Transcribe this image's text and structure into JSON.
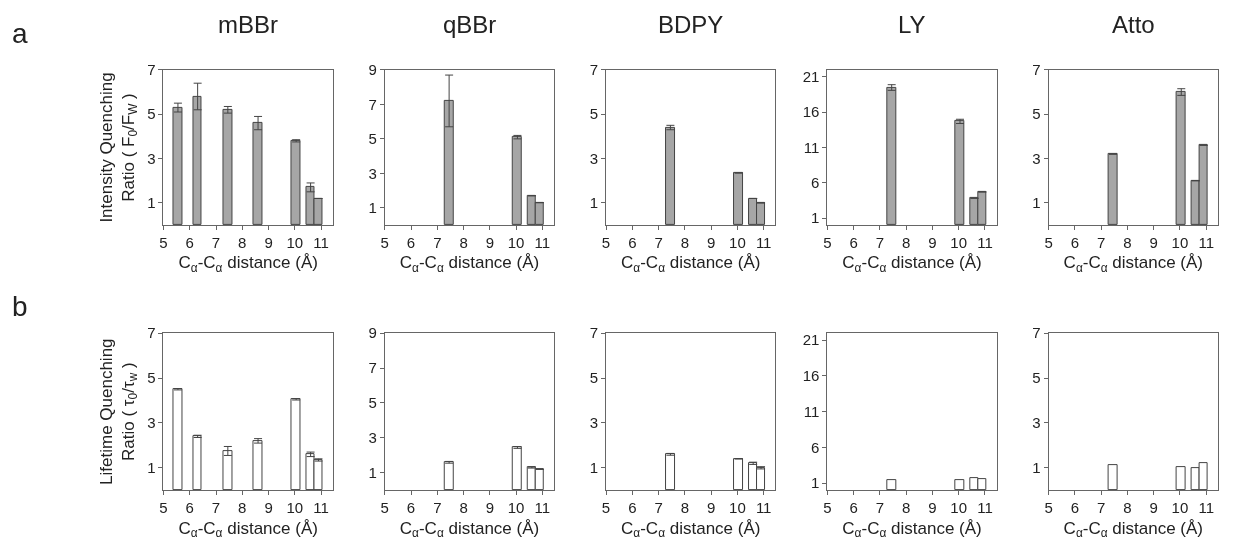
{
  "chart_data": [
    {
      "type": "bar",
      "title": "mBBr",
      "xlabel": "C$_{α}$-C$_{α}$ distance (Å)",
      "ylabel": "Intensity Quenching\nRatio ( F$_{0}$/F$_{W}$ )",
      "annotations": [
        "a"
      ],
      "x": [
        5.55,
        6.3,
        7.45,
        8.6,
        10.05,
        10.6,
        10.9
      ],
      "values": [
        5.3,
        5.8,
        5.2,
        4.6,
        3.8,
        1.7,
        1.2
      ],
      "errors": [
        0.2,
        0.6,
        0.15,
        0.3,
        0.05,
        0.2,
        null
      ],
      "color": "#a6a6a6",
      "xlim": [
        5,
        11.45
      ],
      "xticks": [
        5,
        6,
        7,
        8,
        9,
        10,
        11
      ],
      "ylim": [
        0,
        7
      ],
      "yticks": [
        1,
        3,
        5,
        7
      ]
    },
    {
      "type": "bar",
      "title": "qBBr",
      "xlabel": "C$_{α}$-C$_{α}$ distance (Å)",
      "x": [
        7.45,
        10.05,
        10.6,
        10.9
      ],
      "values": [
        7.2,
        5.1,
        1.7,
        1.3
      ],
      "errors": [
        1.5,
        0.1,
        null,
        null
      ],
      "color": "#a6a6a6",
      "xlim": [
        5,
        11.45
      ],
      "xticks": [
        5,
        6,
        7,
        8,
        9,
        10,
        11
      ],
      "ylim": [
        0,
        9
      ],
      "yticks": [
        1,
        3,
        5,
        7,
        9
      ]
    },
    {
      "type": "bar",
      "title": "BDPY",
      "xlabel": "C$_{α}$-C$_{α}$ distance (Å)",
      "x": [
        7.45,
        10.05,
        10.6,
        10.9
      ],
      "values": [
        4.4,
        2.35,
        1.2,
        1.0
      ],
      "errors": [
        0.1,
        null,
        null,
        null
      ],
      "color": "#a6a6a6",
      "xlim": [
        5,
        11.45
      ],
      "xticks": [
        5,
        6,
        7,
        8,
        9,
        10,
        11
      ],
      "ylim": [
        0,
        7
      ],
      "yticks": [
        1,
        3,
        5,
        7
      ]
    },
    {
      "type": "bar",
      "title": "LY",
      "xlabel": "C$_{α}$-C$_{α}$ distance (Å)",
      "x": [
        7.45,
        10.05,
        10.6,
        10.9
      ],
      "values": [
        19.5,
        14.7,
        3.8,
        4.7
      ],
      "errors": [
        0.4,
        0.3,
        null,
        null
      ],
      "color": "#a6a6a6",
      "xlim": [
        5,
        11.45
      ],
      "xticks": [
        5,
        6,
        7,
        8,
        9,
        10,
        11
      ],
      "ylim": [
        0,
        22
      ],
      "yticks": [
        1,
        6,
        11,
        16,
        21
      ]
    },
    {
      "type": "bar",
      "title": "Atto",
      "xlabel": "C$_{α}$-C$_{α}$ distance (Å)",
      "x": [
        7.45,
        10.05,
        10.6,
        10.9
      ],
      "values": [
        3.2,
        6.0,
        2.0,
        3.6
      ],
      "errors": [
        null,
        0.15,
        null,
        null
      ],
      "color": "#a6a6a6",
      "xlim": [
        5,
        11.45
      ],
      "xticks": [
        5,
        6,
        7,
        8,
        9,
        10,
        11
      ],
      "ylim": [
        0,
        7
      ],
      "yticks": [
        1,
        3,
        5,
        7
      ]
    },
    {
      "type": "bar",
      "xlabel": "C$_{α}$-C$_{α}$ distance (Å)",
      "ylabel": "Lifetime Quenching\nRatio ( τ$_{0}$/τ$_{w}$ )",
      "annotations": [
        "b"
      ],
      "x": [
        5.55,
        6.3,
        7.45,
        8.6,
        10.05,
        10.6,
        10.9
      ],
      "values": [
        4.5,
        2.4,
        1.75,
        2.2,
        4.05,
        1.6,
        1.35
      ],
      "errors": [
        0.03,
        0.05,
        0.2,
        0.1,
        0.03,
        0.1,
        0.05
      ],
      "color": "#ffffff",
      "xlim": [
        5,
        11.45
      ],
      "xticks": [
        5,
        6,
        7,
        8,
        9,
        10,
        11
      ],
      "ylim": [
        0,
        7
      ],
      "yticks": [
        1,
        3,
        5,
        7
      ]
    },
    {
      "type": "bar",
      "xlabel": "C$_{α}$-C$_{α}$ distance (Å)",
      "x": [
        7.45,
        10.05,
        10.6,
        10.9
      ],
      "values": [
        1.6,
        2.45,
        1.3,
        1.2
      ],
      "errors": [
        0.05,
        0.05,
        0.03,
        null
      ],
      "color": "#ffffff",
      "xlim": [
        5,
        11.45
      ],
      "xticks": [
        5,
        6,
        7,
        8,
        9,
        10,
        11
      ],
      "ylim": [
        0,
        9
      ],
      "yticks": [
        1,
        3,
        5,
        7,
        9
      ]
    },
    {
      "type": "bar",
      "xlabel": "C$_{α}$-C$_{α}$ distance (Å)",
      "x": [
        7.45,
        10.05,
        10.6,
        10.9
      ],
      "values": [
        1.6,
        1.4,
        1.2,
        1.0
      ],
      "errors": [
        0.04,
        null,
        0.05,
        0.05
      ],
      "color": "#ffffff",
      "xlim": [
        5,
        11.45
      ],
      "xticks": [
        5,
        6,
        7,
        8,
        9,
        10,
        11
      ],
      "ylim": [
        0,
        7
      ],
      "yticks": [
        1,
        3,
        5,
        7
      ]
    },
    {
      "type": "bar",
      "xlabel": "C$_{α}$-C$_{α}$ distance (Å)",
      "x": [
        7.45,
        10.05,
        10.6,
        10.9
      ],
      "values": [
        1.4,
        1.4,
        1.7,
        1.5
      ],
      "color": "#ffffff",
      "xlim": [
        5,
        11.45
      ],
      "xticks": [
        5,
        6,
        7,
        8,
        9,
        10,
        11
      ],
      "ylim": [
        0,
        22
      ],
      "yticks": [
        1,
        6,
        11,
        16,
        21
      ]
    },
    {
      "type": "bar",
      "xlabel": "C$_{α}$-C$_{α}$ distance (Å)",
      "x": [
        7.45,
        10.05,
        10.6,
        10.9
      ],
      "values": [
        1.13,
        1.05,
        1.0,
        1.2
      ],
      "color": "#ffffff",
      "xlim": [
        5,
        11.45
      ],
      "xticks": [
        5,
        6,
        7,
        8,
        9,
        10,
        11
      ],
      "ylim": [
        0,
        7
      ],
      "yticks": [
        1,
        3,
        5,
        7
      ]
    }
  ]
}
